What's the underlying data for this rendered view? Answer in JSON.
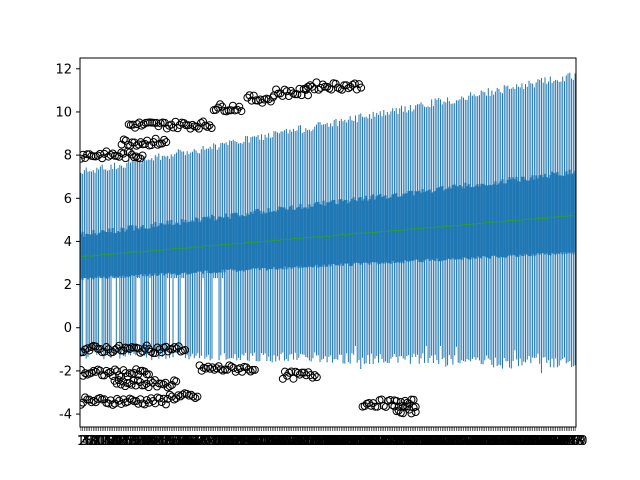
{
  "chart_data": {
    "type": "boxplot",
    "title": "",
    "xlabel": "",
    "ylabel": "",
    "ylim": [
      -4.6,
      12.5
    ],
    "xlim": [
      0.5,
      280.5
    ],
    "n_boxes": 280,
    "y_ticks": [
      -4,
      -2,
      0,
      2,
      4,
      6,
      8,
      10,
      12
    ],
    "y_tick_labels": [
      "-4",
      "-2",
      "0",
      "2",
      "4",
      "6",
      "8",
      "10",
      "12"
    ],
    "x_tick_labels_note": "one overlapping tick label per box (1 … 280), unreadable",
    "median": {
      "start": 3.3,
      "end": 5.2
    },
    "box_q1": {
      "start": 2.3,
      "end": 3.5
    },
    "box_q3": {
      "start": 4.3,
      "end": 7.2
    },
    "whisker_low": {
      "start": -1.2,
      "end": -1.6
    },
    "whisker_high": {
      "start": 7.2,
      "end": 11.7
    },
    "outlier_clusters": [
      {
        "x": [
          1,
          36
        ],
        "y": 8.0
      },
      {
        "x": [
          24,
          50
        ],
        "y": 8.6
      },
      {
        "x": [
          28,
          75
        ],
        "y": 9.4
      },
      {
        "x": [
          76,
          92
        ],
        "y": 10.2
      },
      {
        "x": [
          95,
          110
        ],
        "y": 10.6
      },
      {
        "x": [
          110,
          130
        ],
        "y": 10.9
      },
      {
        "x": [
          128,
          160
        ],
        "y": 11.2
      },
      {
        "x": [
          1,
          50
        ],
        "y": -3.4
      },
      {
        "x": [
          50,
          68
        ],
        "y": -3.2
      },
      {
        "x": [
          68,
          100
        ],
        "y": -1.9
      },
      {
        "x": [
          115,
          135
        ],
        "y": -2.2
      },
      {
        "x": [
          160,
          190
        ],
        "y": -3.5
      },
      {
        "x": [
          178,
          190
        ],
        "y": -3.8
      },
      {
        "x": [
          1,
          60
        ],
        "y": -1.0
      },
      {
        "x": [
          1,
          40
        ],
        "y": -2.1
      },
      {
        "x": [
          20,
          55
        ],
        "y": -2.6
      }
    ],
    "colors": {
      "box": "#1f77b4",
      "median": "#2ca02c",
      "outlier": "#000000",
      "axes": "#000000"
    }
  }
}
